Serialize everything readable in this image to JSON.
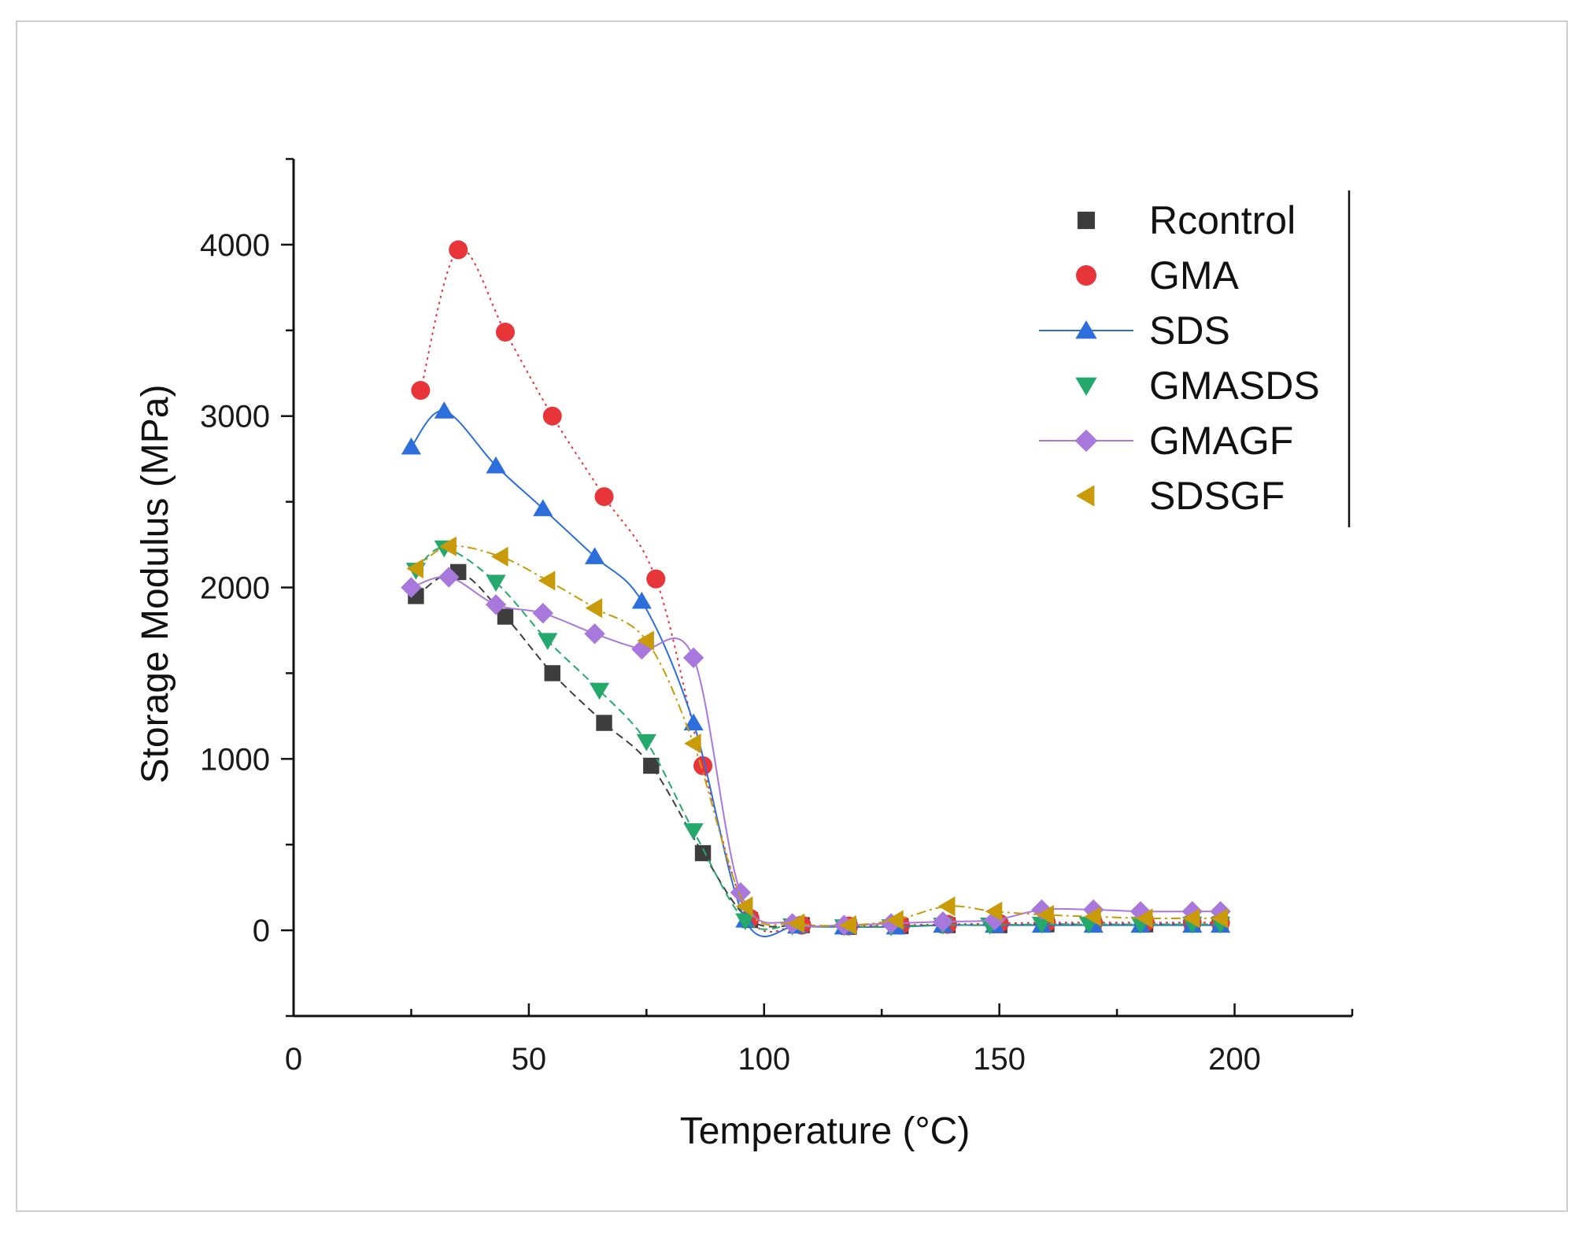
{
  "chart_data": {
    "type": "line",
    "xlabel": "Temperature (°C)",
    "ylabel": "Storage Modulus (MPa)",
    "xlim": [
      0,
      225
    ],
    "ylim": [
      -500,
      4500
    ],
    "x_ticks": [
      0,
      50,
      100,
      150,
      200
    ],
    "y_ticks": [
      0,
      1000,
      2000,
      3000,
      4000
    ],
    "legend_position": "top-right",
    "series": [
      {
        "name": "Rcontrol",
        "color": "#3d3d3d",
        "marker": "square",
        "line": "dashed",
        "points": [
          [
            26,
            1950
          ],
          [
            35,
            2090
          ],
          [
            45,
            1830
          ],
          [
            55,
            1500
          ],
          [
            66,
            1210
          ],
          [
            76,
            960
          ],
          [
            87,
            450
          ],
          [
            97,
            60
          ],
          [
            108,
            30
          ],
          [
            118,
            20
          ],
          [
            129,
            25
          ],
          [
            139,
            30
          ],
          [
            150,
            30
          ],
          [
            160,
            35
          ],
          [
            170,
            35
          ],
          [
            181,
            35
          ],
          [
            191,
            35
          ],
          [
            197,
            35
          ]
        ]
      },
      {
        "name": "GMA",
        "color": "#e8353a",
        "marker": "circle",
        "line": "dotted",
        "points": [
          [
            27,
            3150
          ],
          [
            35,
            3970
          ],
          [
            45,
            3490
          ],
          [
            55,
            3000
          ],
          [
            66,
            2530
          ],
          [
            77,
            2050
          ],
          [
            87,
            960
          ],
          [
            97,
            70
          ],
          [
            108,
            30
          ],
          [
            118,
            25
          ],
          [
            129,
            30
          ],
          [
            139,
            35
          ],
          [
            150,
            40
          ],
          [
            160,
            45
          ],
          [
            170,
            45
          ],
          [
            181,
            45
          ],
          [
            191,
            45
          ],
          [
            197,
            45
          ]
        ]
      },
      {
        "name": "SDS",
        "color": "#2c6fdc",
        "marker": "triangle-up",
        "line": "solid",
        "points": [
          [
            25,
            2820
          ],
          [
            32,
            3030
          ],
          [
            43,
            2710
          ],
          [
            53,
            2460
          ],
          [
            64,
            2180
          ],
          [
            74,
            1920
          ],
          [
            85,
            1210
          ],
          [
            96,
            60
          ],
          [
            107,
            25
          ],
          [
            117,
            20
          ],
          [
            128,
            20
          ],
          [
            138,
            30
          ],
          [
            149,
            30
          ],
          [
            159,
            30
          ],
          [
            170,
            30
          ],
          [
            180,
            30
          ],
          [
            191,
            30
          ],
          [
            197,
            30
          ]
        ]
      },
      {
        "name": "GMASDS",
        "color": "#25a86b",
        "marker": "triangle-down",
        "line": "dashed",
        "points": [
          [
            26,
            2100
          ],
          [
            32,
            2230
          ],
          [
            43,
            2030
          ],
          [
            54,
            1690
          ],
          [
            65,
            1400
          ],
          [
            75,
            1100
          ],
          [
            85,
            580
          ],
          [
            96,
            55
          ],
          [
            106,
            25
          ],
          [
            117,
            20
          ],
          [
            127,
            20
          ],
          [
            138,
            30
          ],
          [
            148,
            30
          ],
          [
            159,
            35
          ],
          [
            169,
            35
          ],
          [
            180,
            35
          ],
          [
            191,
            35
          ],
          [
            197,
            35
          ]
        ]
      },
      {
        "name": "GMAGF",
        "color": "#a878dc",
        "marker": "diamond",
        "line": "solid",
        "points": [
          [
            25,
            2000
          ],
          [
            33,
            2060
          ],
          [
            43,
            1900
          ],
          [
            53,
            1850
          ],
          [
            64,
            1730
          ],
          [
            74,
            1640
          ],
          [
            85,
            1590
          ],
          [
            95,
            220
          ],
          [
            106,
            40
          ],
          [
            117,
            30
          ],
          [
            127,
            40
          ],
          [
            138,
            50
          ],
          [
            149,
            60
          ],
          [
            159,
            120
          ],
          [
            170,
            120
          ],
          [
            180,
            110
          ],
          [
            191,
            110
          ],
          [
            197,
            110
          ]
        ]
      },
      {
        "name": "SDSGF",
        "color": "#c99a0a",
        "marker": "triangle-left",
        "line": "dashdot",
        "points": [
          [
            26,
            2110
          ],
          [
            33,
            2240
          ],
          [
            44,
            2180
          ],
          [
            54,
            2040
          ],
          [
            64,
            1880
          ],
          [
            75,
            1690
          ],
          [
            85,
            1090
          ],
          [
            96,
            140
          ],
          [
            107,
            40
          ],
          [
            118,
            30
          ],
          [
            128,
            60
          ],
          [
            139,
            140
          ],
          [
            149,
            110
          ],
          [
            160,
            90
          ],
          [
            170,
            80
          ],
          [
            181,
            70
          ],
          [
            191,
            70
          ],
          [
            197,
            70
          ]
        ]
      }
    ]
  }
}
